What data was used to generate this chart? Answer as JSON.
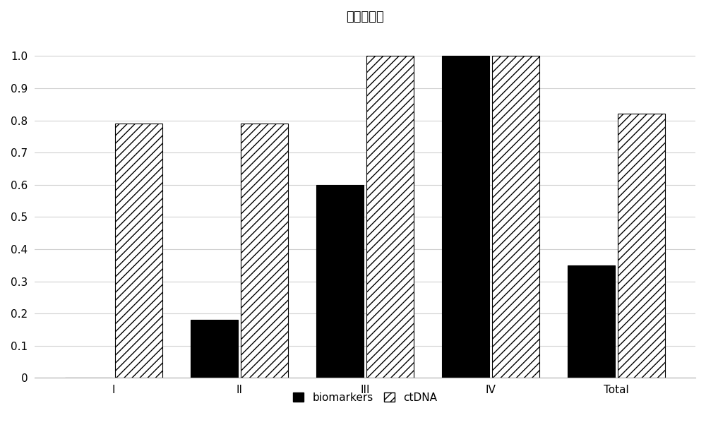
{
  "title": "阳性检出率",
  "categories": [
    "I",
    "II",
    "III",
    "IV",
    "Total"
  ],
  "biomarkers": [
    0.0,
    0.18,
    0.6,
    1.0,
    0.35
  ],
  "ctDNA": [
    0.79,
    0.79,
    1.0,
    1.0,
    0.82
  ],
  "bar_width": 0.38,
  "ylim": [
    0,
    1.08
  ],
  "yticks": [
    0,
    0.1,
    0.2,
    0.3,
    0.4,
    0.5,
    0.6,
    0.7,
    0.8,
    0.9,
    1.0
  ],
  "biomarkers_color": "#000000",
  "ctDNA_facecolor": "#ffffff",
  "ctDNA_edge_color": "#000000",
  "background_color": "#ffffff",
  "plot_area_color": "#ffffff",
  "grid_color": "#d0d0d0",
  "title_fontsize": 13,
  "tick_fontsize": 11,
  "legend_labels": [
    "biomarkers",
    "ctDNA"
  ],
  "hatch_pattern": "///",
  "bar_gap": 0.02
}
